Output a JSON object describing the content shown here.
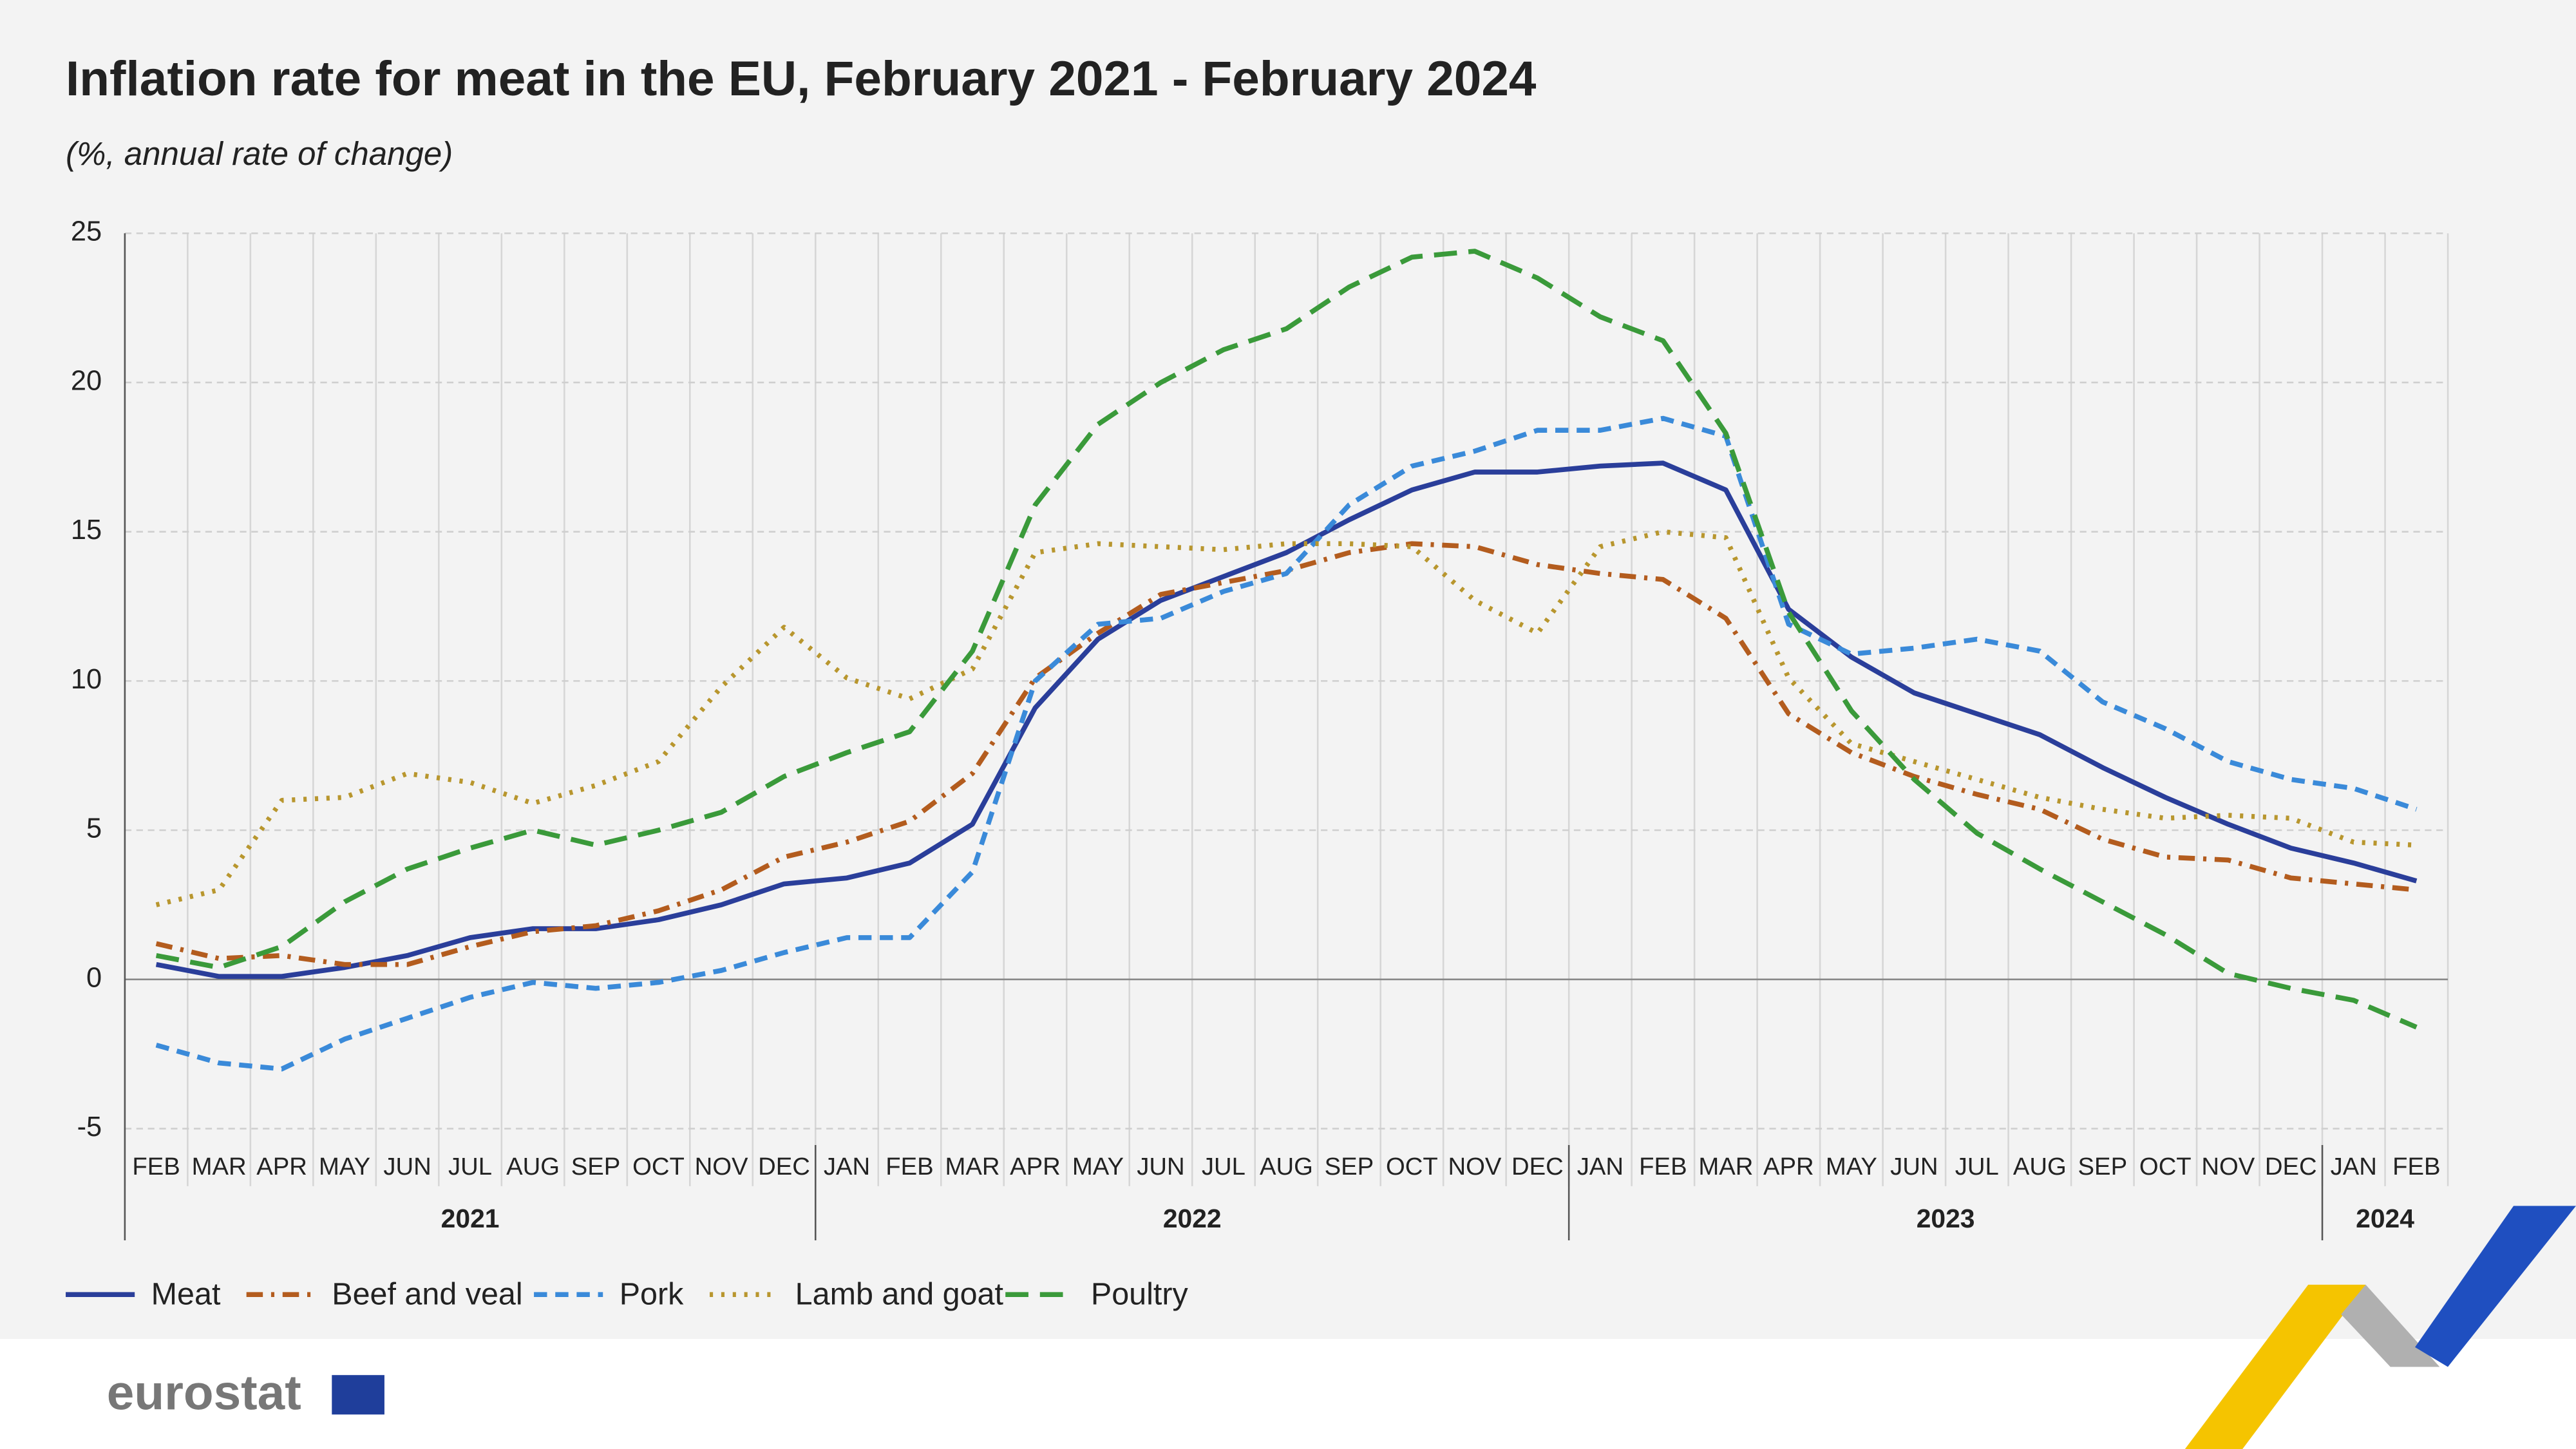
{
  "chart_data": {
    "type": "line",
    "title": "Inflation rate for meat in the EU, February 2021 - February 2024",
    "subtitle": "(%, annual rate of change)",
    "category_groups": [
      {
        "label": "2021",
        "categories": [
          "FEB",
          "MAR",
          "APR",
          "MAY",
          "JUN",
          "JUL",
          "AUG",
          "SEP",
          "OCT",
          "NOV",
          "DEC"
        ]
      },
      {
        "label": "2022",
        "categories": [
          "JAN",
          "FEB",
          "MAR",
          "APR",
          "MAY",
          "JUN",
          "JUL",
          "AUG",
          "SEP",
          "OCT",
          "NOV",
          "DEC"
        ]
      },
      {
        "label": "2023",
        "categories": [
          "JAN",
          "FEB",
          "MAR",
          "APR",
          "MAY",
          "JUN",
          "JUL",
          "AUG",
          "SEP",
          "OCT",
          "NOV",
          "DEC"
        ]
      },
      {
        "label": "2024",
        "categories": [
          "JAN",
          "FEB"
        ]
      }
    ],
    "ylim": [
      -5,
      25
    ],
    "yticks": [
      -5,
      0,
      5,
      10,
      15,
      20,
      25
    ],
    "grid": true,
    "legend": "bottom",
    "series": [
      {
        "name": "Meat",
        "color": "#2a3e9a",
        "dash": "none",
        "values": [
          0.5,
          0.1,
          0.1,
          0.4,
          0.8,
          1.4,
          1.7,
          1.7,
          2.0,
          2.5,
          3.2,
          3.4,
          3.9,
          5.2,
          9.1,
          11.4,
          12.7,
          13.5,
          14.3,
          15.4,
          16.4,
          17.0,
          17.0,
          17.2,
          17.3,
          16.4,
          12.4,
          10.8,
          9.6,
          8.9,
          8.2,
          7.1,
          6.1,
          5.2,
          4.4,
          3.9,
          3.3
        ]
      },
      {
        "name": "Beef and veal",
        "color": "#b35c1e",
        "dash": "10,5,2,5",
        "values": [
          1.2,
          0.7,
          0.8,
          0.5,
          0.5,
          1.1,
          1.6,
          1.8,
          2.3,
          3.0,
          4.1,
          4.6,
          5.3,
          6.9,
          10.1,
          11.6,
          12.9,
          13.3,
          13.7,
          14.3,
          14.6,
          14.5,
          13.9,
          13.6,
          13.4,
          12.1,
          8.9,
          7.6,
          6.8,
          6.2,
          5.7,
          4.7,
          4.1,
          4.0,
          3.4,
          3.2,
          3.0
        ]
      },
      {
        "name": "Pork",
        "color": "#3a8ad9",
        "dash": "8,5",
        "values": [
          -2.2,
          -2.8,
          -3.0,
          -2.0,
          -1.3,
          -0.6,
          -0.1,
          -0.3,
          -0.1,
          0.3,
          0.9,
          1.4,
          1.4,
          3.6,
          10.0,
          11.9,
          12.1,
          13.0,
          13.6,
          15.9,
          17.2,
          17.7,
          18.4,
          18.4,
          18.8,
          18.2,
          11.9,
          10.9,
          11.1,
          11.4,
          11.0,
          9.3,
          8.4,
          7.3,
          6.7,
          6.4,
          5.7
        ]
      },
      {
        "name": "Lamb and goat",
        "color": "#b8962e",
        "dash": "2,5",
        "values": [
          2.5,
          3.0,
          6.0,
          6.1,
          6.9,
          6.6,
          5.9,
          6.5,
          7.3,
          9.8,
          11.8,
          10.1,
          9.4,
          10.4,
          14.3,
          14.6,
          14.5,
          14.4,
          14.6,
          14.6,
          14.5,
          12.7,
          11.6,
          14.5,
          15.0,
          14.8,
          10.1,
          7.9,
          7.3,
          6.7,
          6.1,
          5.7,
          5.4,
          5.5,
          5.4,
          4.6,
          4.5
        ]
      },
      {
        "name": "Poultry",
        "color": "#3a9a3a",
        "dash": "14,7",
        "values": [
          0.8,
          0.4,
          1.1,
          2.6,
          3.7,
          4.4,
          5.0,
          4.5,
          5.0,
          5.6,
          6.8,
          7.6,
          8.3,
          11.0,
          15.9,
          18.6,
          20.0,
          21.1,
          21.8,
          23.2,
          24.2,
          24.4,
          23.5,
          22.2,
          21.4,
          18.3,
          12.3,
          9.0,
          6.7,
          4.9,
          3.7,
          2.6,
          1.5,
          0.2,
          -0.3,
          -0.7,
          -1.6
        ]
      }
    ]
  },
  "footer": {
    "logo": "eurostat"
  }
}
